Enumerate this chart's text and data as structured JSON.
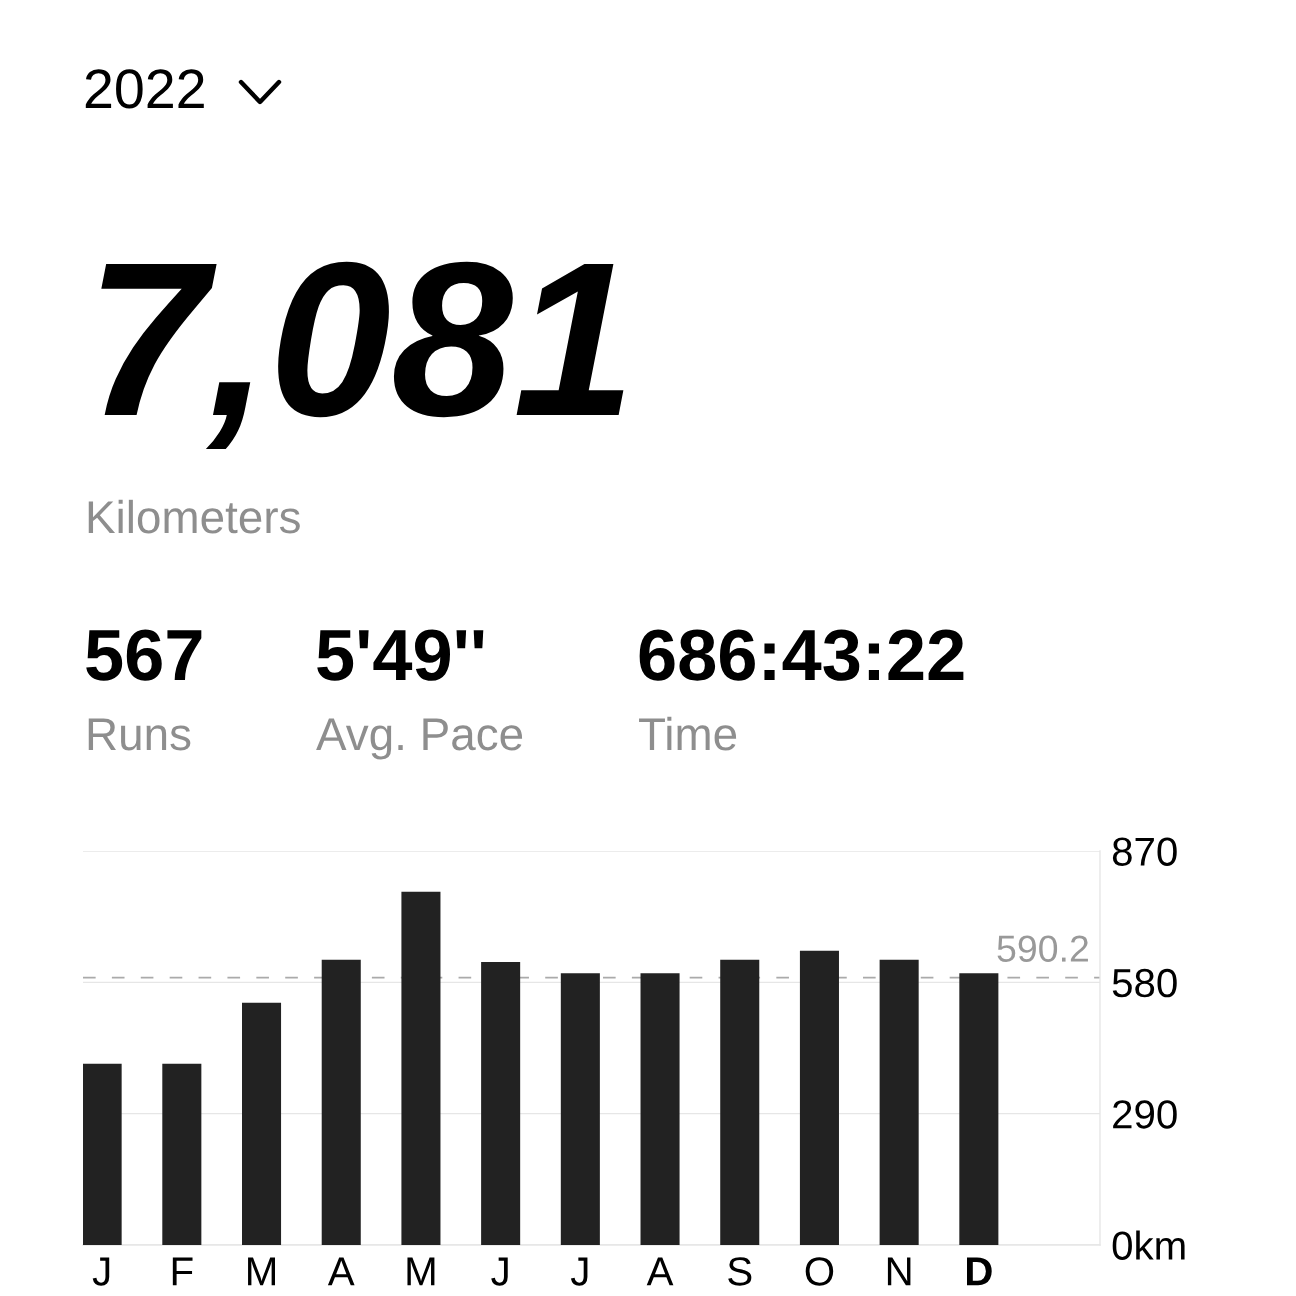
{
  "chart_data": {
    "type": "bar",
    "title": "2022",
    "annotations": [
      "7,081",
      "Kilometers",
      "567",
      "Runs",
      "5'49''",
      "Avg. Pace",
      "686:43:22",
      "Time"
    ],
    "categories": [
      "J",
      "F",
      "M",
      "A",
      "M",
      "J",
      "J",
      "A",
      "S",
      "O",
      "N",
      "D"
    ],
    "values": [
      400,
      400,
      535,
      630,
      780,
      625,
      600,
      600,
      630,
      650,
      630,
      600
    ],
    "color": "#222222",
    "ylim": [
      0,
      870
    ],
    "yticks": [
      {
        "value": 0,
        "label": "0km"
      },
      290,
      580,
      870
    ],
    "grid": "y",
    "ref_lines": [
      {
        "axis": "y",
        "value": 590.2,
        "label": "590.2",
        "color": "#aaaaaa",
        "line_style": "dashed"
      }
    ]
  }
}
